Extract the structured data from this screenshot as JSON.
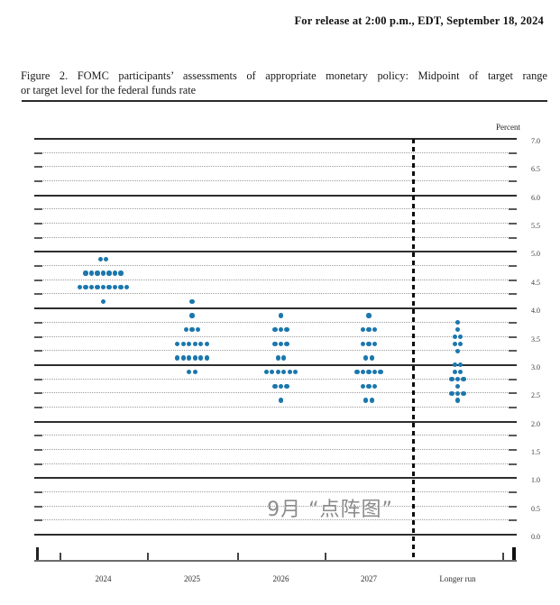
{
  "header": {
    "release_line": "For release at 2:00 p.m., EDT, September 18, 2024"
  },
  "caption": {
    "line1": "Figure 2.  FOMC participants’ assessments of appropriate monetary policy:  Midpoint of target range",
    "line2": "or target level for the federal funds rate"
  },
  "watermark": "9月 “点阵图”",
  "chart_data": {
    "type": "scatter",
    "title": "FOMC dot plot — midpoint of target range or target level for the federal funds rate",
    "ylabel": "Percent",
    "xlabel": "",
    "ylim": [
      0.0,
      7.0
    ],
    "y_gridline_step": 0.25,
    "y_label_step": 0.5,
    "grid": "solid lines at whole percents, dotted lines at quarter percents",
    "dot_color": "#1b77ad",
    "categories": [
      "2024",
      "2025",
      "2026",
      "2027",
      "Longer run"
    ],
    "series": [
      {
        "name": "2024",
        "dots": [
          {
            "value": 4.875,
            "count": 2
          },
          {
            "value": 4.625,
            "count": 7
          },
          {
            "value": 4.375,
            "count": 9
          },
          {
            "value": 4.125,
            "count": 1
          }
        ]
      },
      {
        "name": "2025",
        "dots": [
          {
            "value": 4.125,
            "count": 1
          },
          {
            "value": 3.875,
            "count": 1
          },
          {
            "value": 3.625,
            "count": 3
          },
          {
            "value": 3.375,
            "count": 6
          },
          {
            "value": 3.125,
            "count": 6
          },
          {
            "value": 2.875,
            "count": 2
          }
        ]
      },
      {
        "name": "2026",
        "dots": [
          {
            "value": 3.875,
            "count": 1
          },
          {
            "value": 3.625,
            "count": 3
          },
          {
            "value": 3.375,
            "count": 3
          },
          {
            "value": 3.125,
            "count": 2
          },
          {
            "value": 2.875,
            "count": 6
          },
          {
            "value": 2.625,
            "count": 3
          },
          {
            "value": 2.375,
            "count": 1
          }
        ]
      },
      {
        "name": "2027",
        "dots": [
          {
            "value": 3.875,
            "count": 1
          },
          {
            "value": 3.625,
            "count": 3
          },
          {
            "value": 3.375,
            "count": 3
          },
          {
            "value": 3.125,
            "count": 2
          },
          {
            "value": 2.875,
            "count": 5
          },
          {
            "value": 2.625,
            "count": 3
          },
          {
            "value": 2.375,
            "count": 2
          }
        ]
      },
      {
        "name": "Longer run",
        "dots": [
          {
            "value": 3.75,
            "count": 1
          },
          {
            "value": 3.625,
            "count": 1
          },
          {
            "value": 3.5,
            "count": 2
          },
          {
            "value": 3.375,
            "count": 2
          },
          {
            "value": 3.25,
            "count": 1
          },
          {
            "value": 3.0,
            "count": 2
          },
          {
            "value": 2.875,
            "count": 2
          },
          {
            "value": 2.75,
            "count": 3
          },
          {
            "value": 2.625,
            "count": 1
          },
          {
            "value": 2.5,
            "count": 3
          },
          {
            "value": 2.375,
            "count": 1
          }
        ]
      }
    ]
  }
}
